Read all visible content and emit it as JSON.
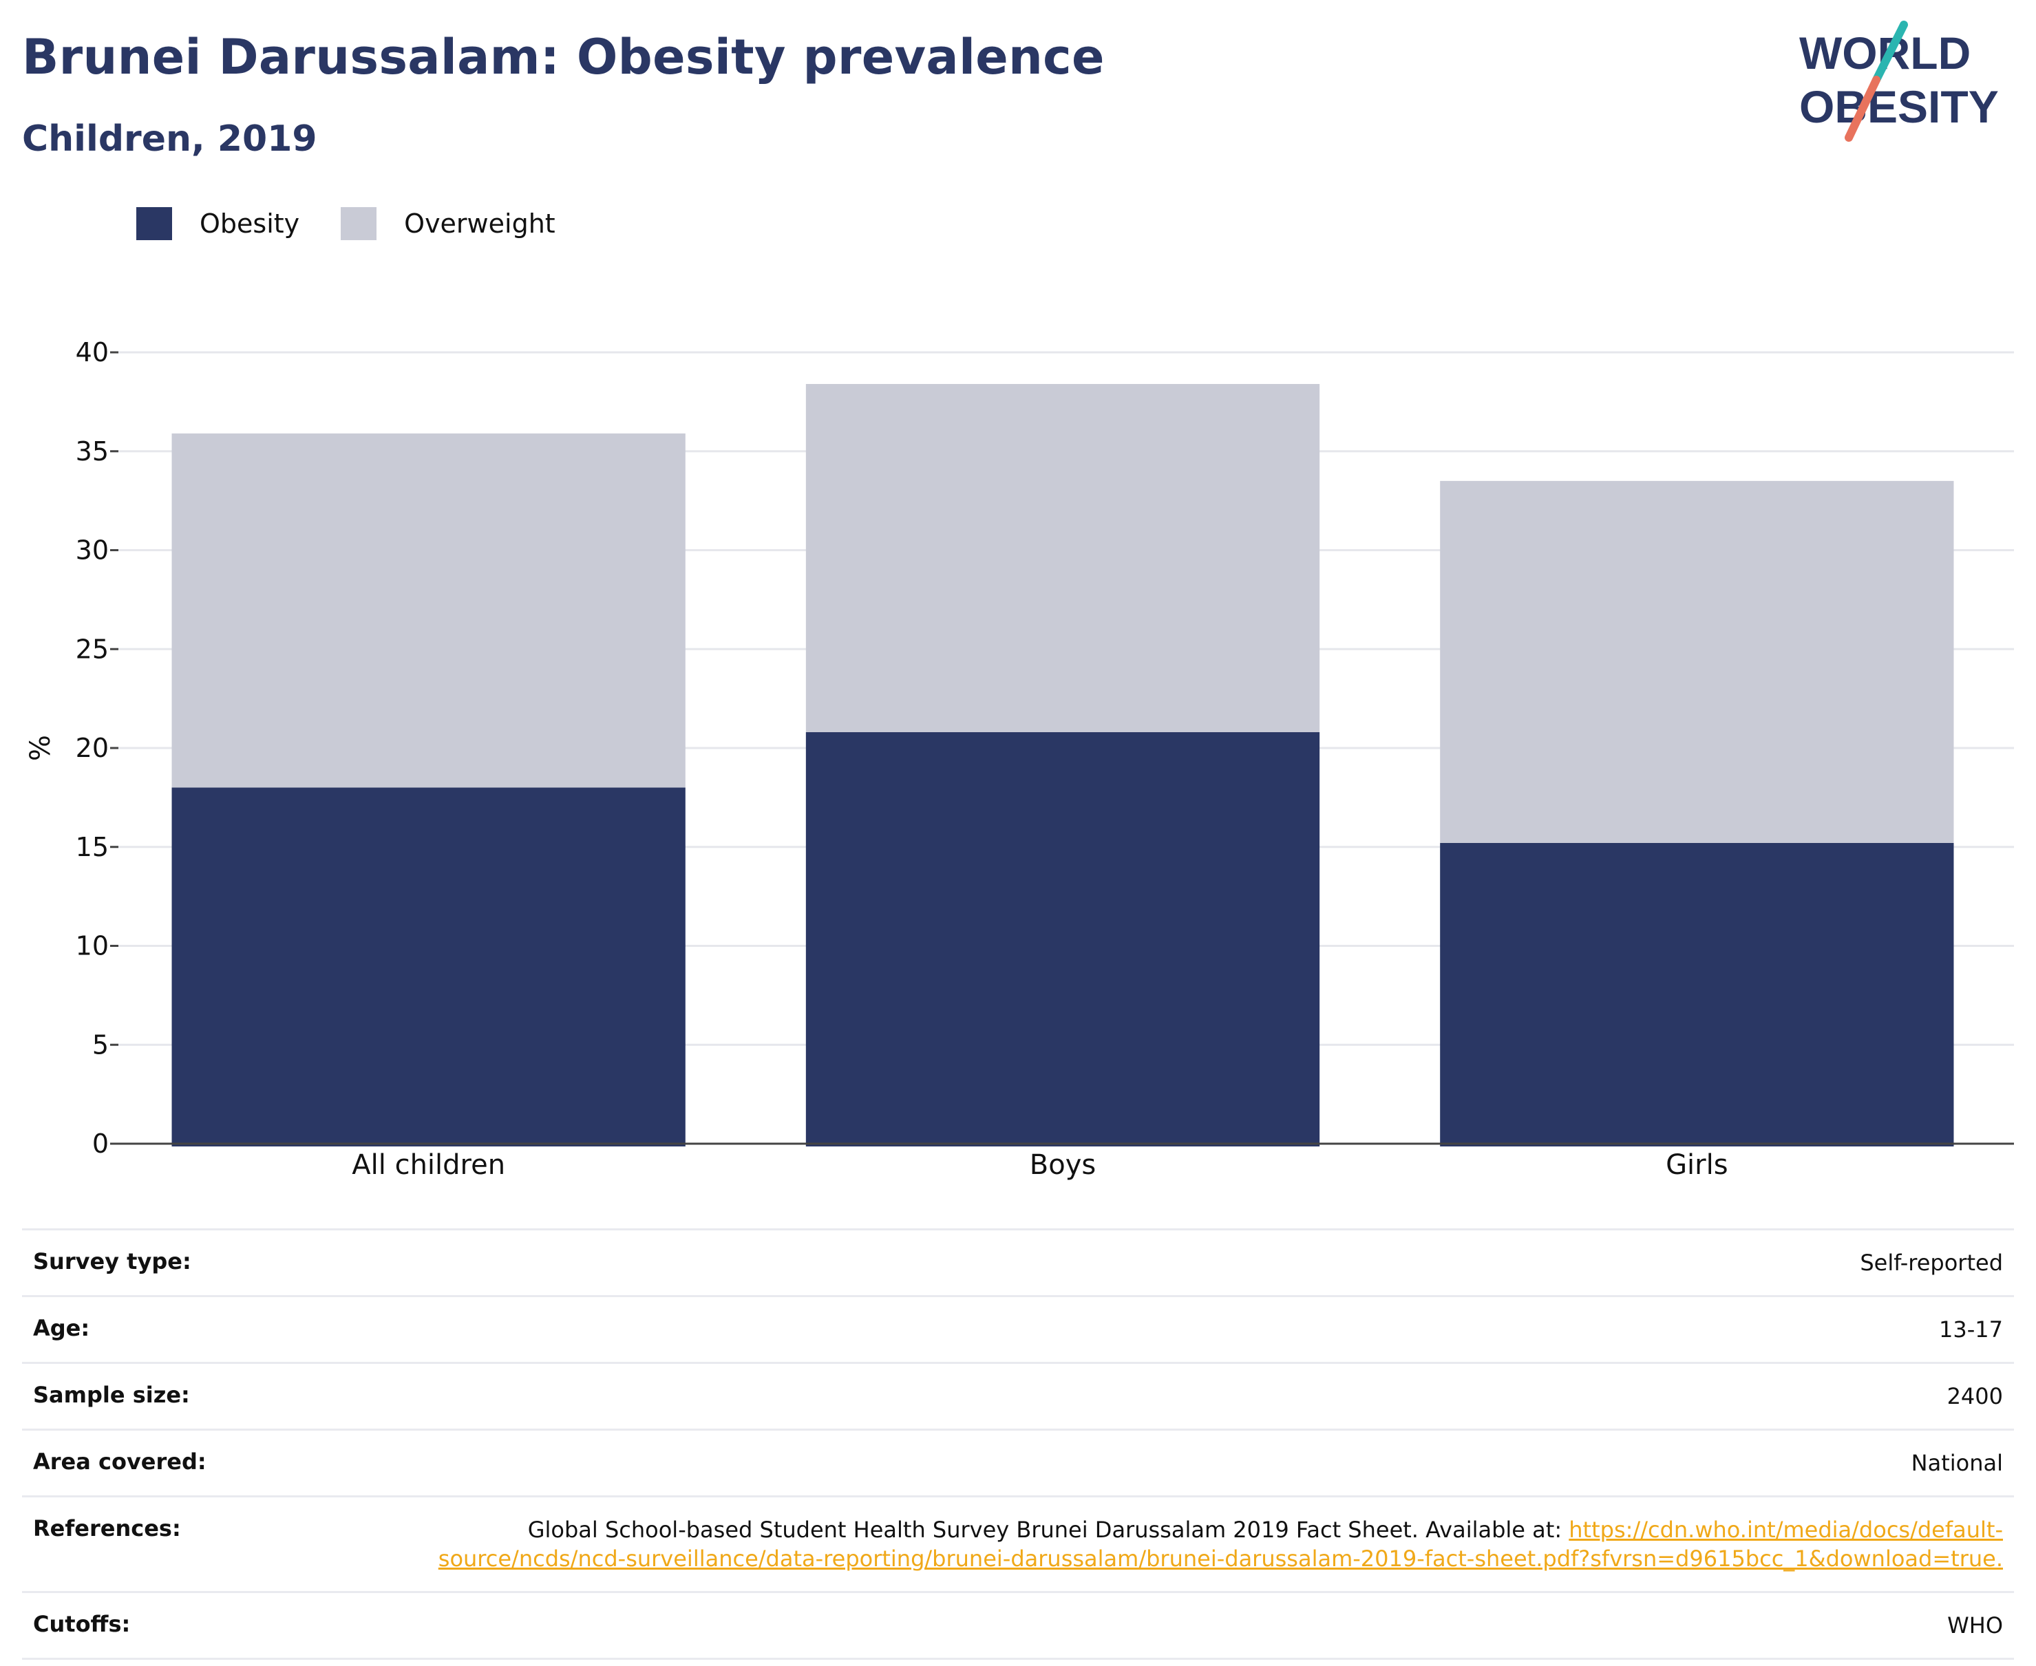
{
  "header": {
    "title": "Brunei Darussalam: Obesity prevalence",
    "subtitle": "Children, 2019",
    "logo_line1": "WORLD",
    "logo_line2": "OBESITY"
  },
  "colors": {
    "obesity": "#2a3764",
    "overweight": "#c9cbd6",
    "link": "#f0a818",
    "logo_teal": "#2bb5b0",
    "logo_coral": "#e8735d"
  },
  "legend": [
    {
      "label": "Obesity"
    },
    {
      "label": "Overweight"
    }
  ],
  "chart_data": {
    "type": "bar",
    "stacked": true,
    "categories": [
      "All children",
      "Boys",
      "Girls"
    ],
    "series": [
      {
        "name": "Obesity",
        "values": [
          18.0,
          20.8,
          15.2
        ]
      },
      {
        "name": "Overweight",
        "values": [
          17.9,
          17.6,
          18.3
        ]
      }
    ],
    "ylabel": "%",
    "ylim": [
      0,
      40
    ],
    "yticks": [
      0,
      5,
      10,
      15,
      20,
      25,
      30,
      35,
      40
    ],
    "grid": true,
    "legend_position": "top-left"
  },
  "info": {
    "survey_type": {
      "label": "Survey type:",
      "value": "Self-reported"
    },
    "age": {
      "label": "Age:",
      "value": "13-17"
    },
    "sample_size": {
      "label": "Sample size:",
      "value": "2400"
    },
    "area": {
      "label": "Area covered:",
      "value": "National"
    },
    "references": {
      "label": "References:",
      "text": "Global School-based Student Health Survey Brunei Darussalam 2019 Fact Sheet. Available at: ",
      "link": "https://cdn.who.int/media/docs/default-source/ncds/ncd-surveillance/data-reporting/brunei-darussalam/brunei-darussalam-2019-fact-sheet.pdf?sfvrsn=d9615bcc_1&download=true."
    },
    "cutoffs": {
      "label": "Cutoffs:",
      "value": "WHO"
    }
  }
}
